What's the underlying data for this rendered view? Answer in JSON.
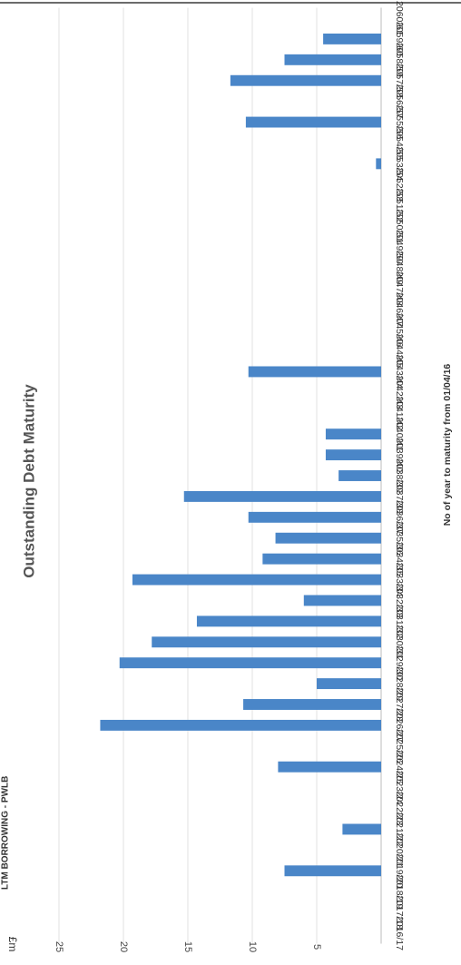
{
  "header_text": "LTM BORROWING - PWLB",
  "chart_data": {
    "type": "bar",
    "title": "Outstanding Debt Maturity",
    "xlabel": "No of year to maturity from 01/04/16",
    "ylabel": "£m",
    "ylim": [
      0,
      25
    ],
    "yticks": [
      5,
      10,
      15,
      20,
      25
    ],
    "grid": true,
    "orientation": "rotated-90-clockwise",
    "bar_color": "#4a86c8",
    "categories": [
      "2016/17",
      "2017/18",
      "2018/19",
      "2019/20",
      "2020/21",
      "2021/22",
      "2022/23",
      "2023/24",
      "2024/25",
      "2025/26",
      "2026/27",
      "2027/28",
      "2028/29",
      "2029/30",
      "2030/31",
      "2031/32",
      "2032/33",
      "2033/34",
      "2034/35",
      "2035/36",
      "2036/37",
      "2037/38",
      "2038/39",
      "2039/40",
      "2040/41",
      "2041/42",
      "2042/43",
      "2043/44",
      "2044/45",
      "2045/46",
      "2046/47",
      "2047/48",
      "2048/49",
      "2049/50",
      "2050/51",
      "2051/52",
      "2052/53",
      "2053/54",
      "2054/55",
      "2055/56",
      "2056/57",
      "2057/58",
      "2058/59",
      "2059/60",
      "2060/61"
    ],
    "values": [
      0,
      0,
      0,
      7.5,
      0,
      3,
      0,
      0,
      8,
      0,
      21.8,
      10.7,
      5,
      20.3,
      17.8,
      14.3,
      6,
      19.3,
      9.2,
      8.2,
      10.3,
      15.3,
      3.3,
      4.3,
      4.3,
      0,
      0,
      10.3,
      0,
      0,
      0,
      0,
      0,
      0,
      0,
      0,
      0,
      0.4,
      0,
      10.5,
      0,
      11.7,
      7.5,
      4.5,
      0
    ]
  }
}
